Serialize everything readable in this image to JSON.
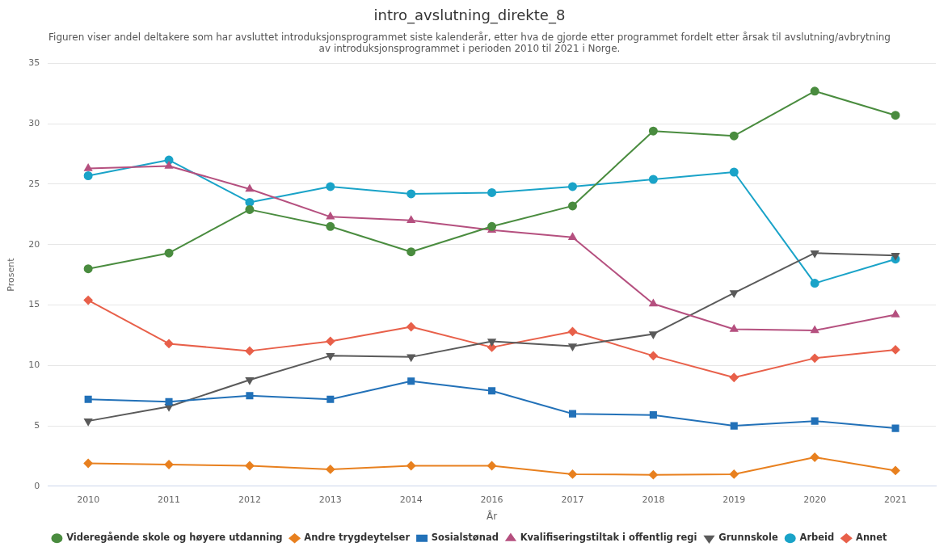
{
  "chart_data": {
    "type": "line",
    "title": "intro_avslutning_direkte_8",
    "subtitle": "Figuren viser andel deltakere som har avsluttet introduksjonsprogrammet siste kalenderår, etter hva de gjorde etter programmet fordelt etter årsak til avslutning/avbrytning av introduksjonsprogrammet i perioden 2010 til 2021 i Norge.",
    "xlabel": "År",
    "ylabel": "Prosent",
    "categories": [
      "2010",
      "2011",
      "2012",
      "2013",
      "2014",
      "2016",
      "2017",
      "2018",
      "2019",
      "2020",
      "2021"
    ],
    "ylim": [
      0,
      35
    ],
    "yticks": [
      0,
      5,
      10,
      15,
      20,
      25,
      30,
      35
    ],
    "grid": "y",
    "legend": "bottom",
    "series": [
      {
        "name": "Videregående skole og høyere utdanning",
        "color": "#4a8c3f",
        "marker": "circle",
        "values": [
          18.0,
          19.3,
          22.9,
          21.5,
          19.4,
          21.5,
          23.2,
          29.4,
          29.0,
          32.7,
          30.7
        ]
      },
      {
        "name": "Andre trygdeytelser",
        "color": "#e8801f",
        "marker": "diamond",
        "values": [
          1.9,
          1.8,
          1.7,
          1.4,
          1.7,
          1.7,
          1.0,
          0.95,
          1.0,
          2.4,
          1.3
        ]
      },
      {
        "name": "Sosialstønad",
        "color": "#2271b8",
        "marker": "square",
        "values": [
          7.2,
          7.0,
          7.5,
          7.2,
          8.7,
          7.9,
          6.0,
          5.9,
          5.0,
          5.4,
          4.8
        ]
      },
      {
        "name": "Kvalifiseringstiltak i offentlig regi",
        "color": "#b5507f",
        "marker": "triangle",
        "values": [
          26.3,
          26.5,
          24.6,
          22.3,
          22.0,
          21.2,
          20.6,
          15.1,
          13.0,
          12.9,
          14.2
        ]
      },
      {
        "name": "Grunnskole",
        "color": "#5a5a5a",
        "marker": "triangle-down",
        "values": [
          5.4,
          6.6,
          8.8,
          10.8,
          10.7,
          12.0,
          11.6,
          12.6,
          16.0,
          19.3,
          19.1
        ]
      },
      {
        "name": "Arbeid",
        "color": "#1aa3c8",
        "marker": "circle",
        "values": [
          25.7,
          27.0,
          23.5,
          24.8,
          24.2,
          24.3,
          24.8,
          25.4,
          26.0,
          16.8,
          18.8
        ]
      },
      {
        "name": "Annet",
        "color": "#e8604a",
        "marker": "diamond",
        "values": [
          15.4,
          11.8,
          11.2,
          12.0,
          13.2,
          11.5,
          12.8,
          10.8,
          9.0,
          10.6,
          11.3
        ]
      }
    ]
  }
}
